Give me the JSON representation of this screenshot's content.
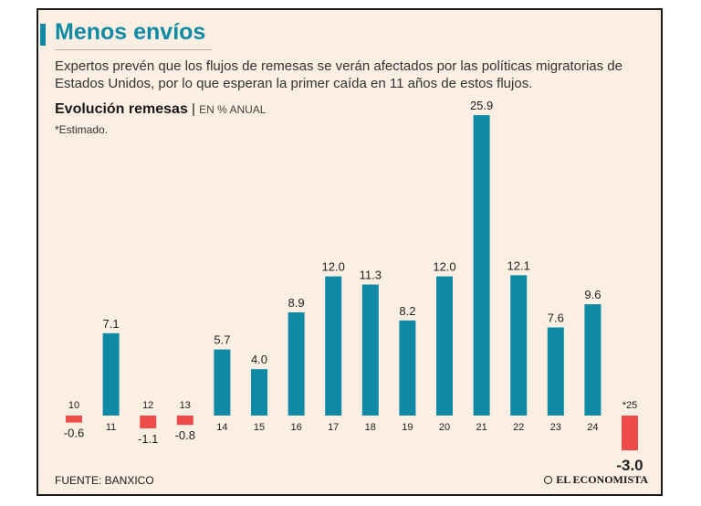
{
  "header": {
    "title": "Menos envíos",
    "subtitle": "Expertos prevén que los flujos de remesas se verán afectados por las políticas migratorias de Estados Unidos, por lo que esperan la primer caída en 11 años de estos flujos."
  },
  "chart_header": {
    "title": "Evolución remesas",
    "separator": "|",
    "unit": "EN % ANUAL",
    "note": "*Estimado."
  },
  "footer": {
    "source": "FUENTE: BANXICO",
    "brand": "EL ECONOMISTA"
  },
  "colors": {
    "positive": "#0f8aa4",
    "negative": "#ef4b4b",
    "title": "#0f8aa4",
    "background": "#fbeee3"
  },
  "chart_data": {
    "type": "bar",
    "categories": [
      "10",
      "11",
      "12",
      "13",
      "14",
      "15",
      "16",
      "17",
      "18",
      "19",
      "20",
      "21",
      "22",
      "23",
      "24",
      "*25"
    ],
    "value_labels": [
      "-0.6",
      "7.1",
      "-1.1",
      "-0.8",
      "5.7",
      "4.0",
      "8.9",
      "12.0",
      "11.3",
      "8.2",
      "12.0",
      "25.9",
      "12.1",
      "7.6",
      "9.6",
      "-3.0"
    ],
    "values": [
      -0.6,
      7.1,
      -1.1,
      -0.8,
      5.7,
      4.0,
      8.9,
      12.0,
      11.3,
      8.2,
      12.0,
      25.9,
      12.1,
      7.6,
      9.6,
      -3.0
    ],
    "title": "Evolución remesas",
    "ylabel": "EN % ANUAL",
    "grid": false,
    "highlight_last": true
  }
}
